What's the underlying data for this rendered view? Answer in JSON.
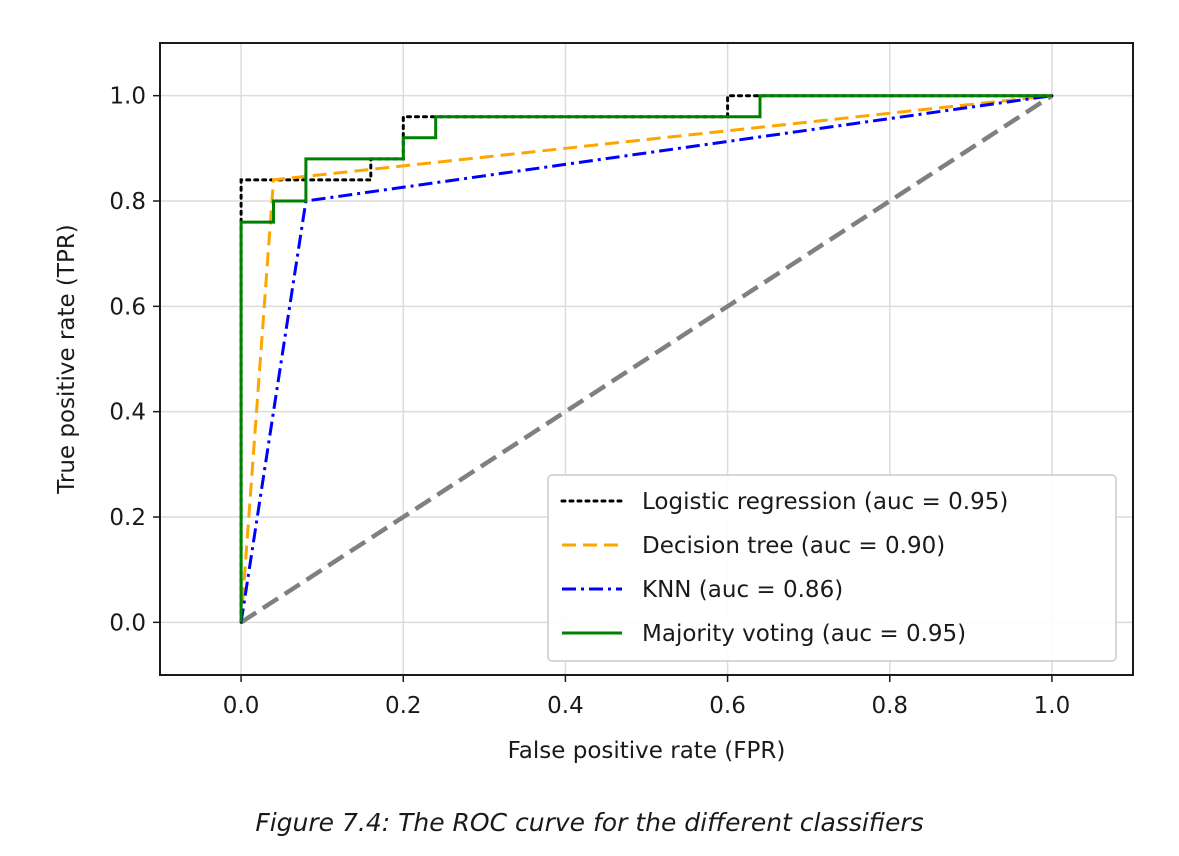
{
  "chart_data": {
    "type": "line",
    "xlabel": "False positive rate (FPR)",
    "ylabel": "True positive rate (TPR)",
    "xlim": [
      -0.1,
      1.1
    ],
    "ylim": [
      -0.1,
      1.1
    ],
    "xticks": [
      "0.0",
      "0.2",
      "0.4",
      "0.6",
      "0.8",
      "1.0"
    ],
    "yticks": [
      "0.0",
      "0.2",
      "0.4",
      "0.6",
      "0.8",
      "1.0"
    ],
    "grid": true,
    "legend_position": "lower-right",
    "series": [
      {
        "name": "Logistic regression (auc = 0.95)",
        "color": "#000000",
        "style": "dotted",
        "x": [
          0,
          0,
          0,
          0,
          0.16,
          0.16,
          0.2,
          0.2,
          0.24,
          0.24,
          0.6,
          0.6,
          0.64,
          1.0
        ],
        "y": [
          0,
          0.04,
          0.8,
          0.84,
          0.84,
          0.88,
          0.88,
          0.96,
          0.96,
          0.96,
          0.96,
          1.0,
          1.0,
          1.0
        ]
      },
      {
        "name": "Decision tree (auc = 0.90)",
        "color": "#FFA500",
        "style": "dashed",
        "x": [
          0,
          0.04,
          1.0
        ],
        "y": [
          0,
          0.84,
          1.0
        ]
      },
      {
        "name": "KNN (auc = 0.86)",
        "color": "#0000FF",
        "style": "dashdot",
        "x": [
          0,
          0.08,
          1.0
        ],
        "y": [
          0,
          0.8,
          1.0
        ]
      },
      {
        "name": "Majority voting (auc = 0.95)",
        "color": "#008000",
        "style": "solid",
        "x": [
          0,
          0,
          0,
          0.04,
          0.04,
          0.08,
          0.08,
          0.2,
          0.2,
          0.24,
          0.24,
          0.64,
          0.64,
          1.0
        ],
        "y": [
          0,
          0.04,
          0.76,
          0.76,
          0.8,
          0.8,
          0.88,
          0.88,
          0.92,
          0.92,
          0.96,
          0.96,
          1.0,
          1.0
        ]
      }
    ],
    "reference_line": {
      "name": "random-chance",
      "color": "#808080",
      "style": "dashed",
      "x": [
        0,
        1
      ],
      "y": [
        0,
        1
      ]
    }
  },
  "caption": "Figure 7.4: The ROC curve for the different classifiers"
}
